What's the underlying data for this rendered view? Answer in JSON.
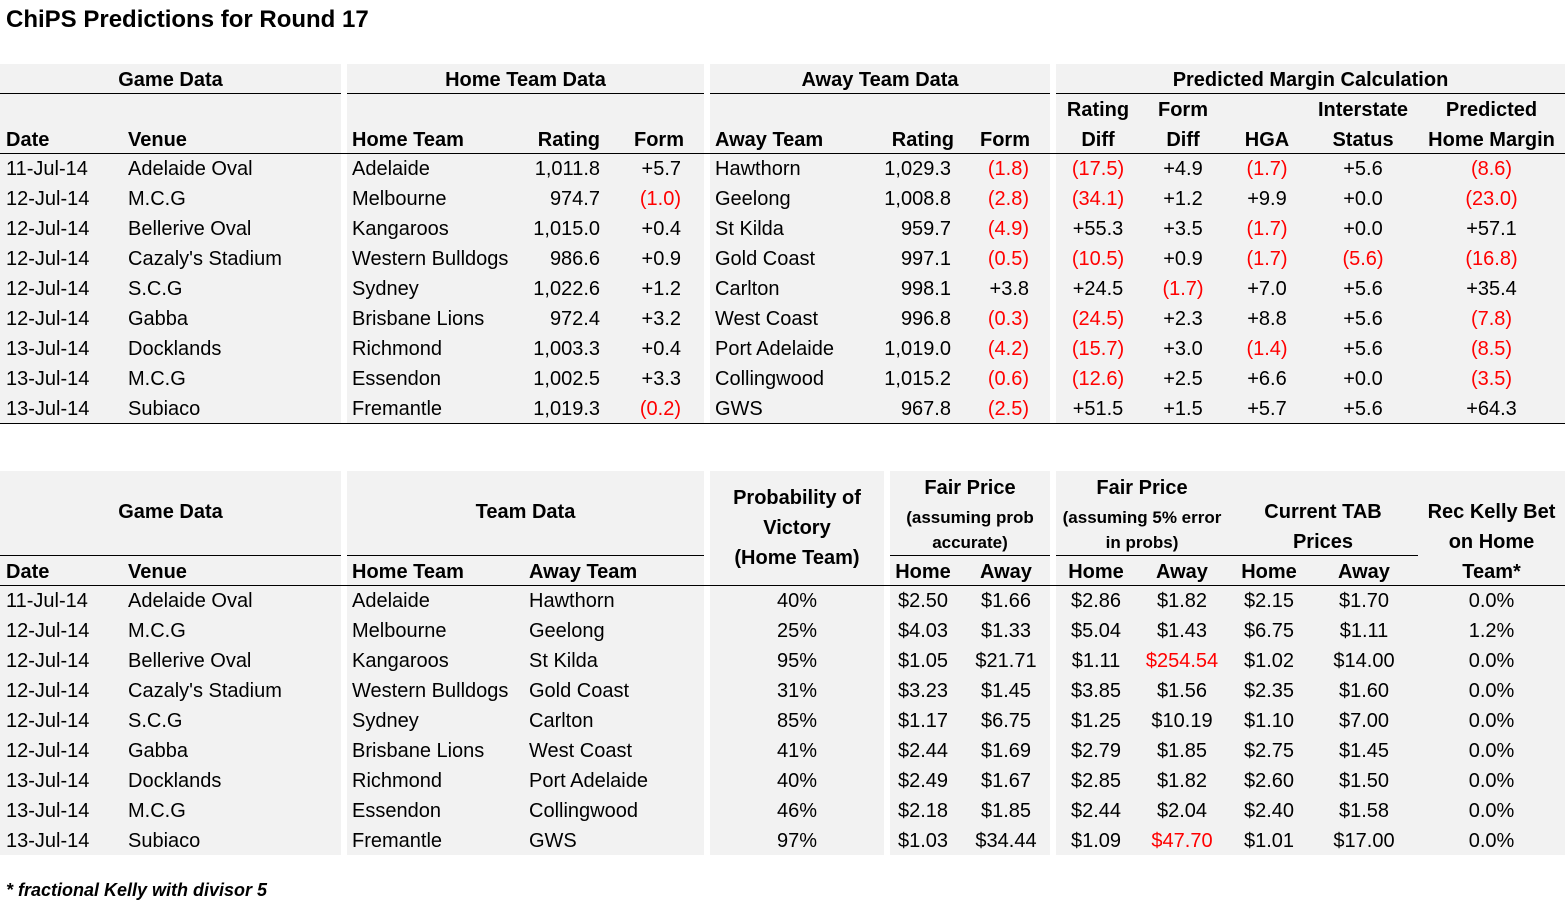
{
  "title": "ChiPS Predictions for Round 17",
  "table1": {
    "sections": [
      "Game Data",
      "Home Team Data",
      "Away Team Data",
      "Predicted Margin Calculation"
    ],
    "headers": {
      "date": "Date",
      "venue": "Venue",
      "home_team": "Home Team",
      "home_rating": "Rating",
      "home_form": "Form",
      "away_team": "Away Team",
      "away_rating": "Rating",
      "away_form": "Form",
      "rating_diff_1": "Rating",
      "rating_diff_2": "Diff",
      "form_diff_1": "Form",
      "form_diff_2": "Diff",
      "hga": "HGA",
      "interstate_1": "Interstate",
      "interstate_2": "Status",
      "pred_1": "Predicted",
      "pred_2": "Home Margin"
    },
    "rows": [
      {
        "date": "11-Jul-14",
        "venue": "Adelaide Oval",
        "home": "Adelaide",
        "hrating": "1,011.8",
        "hform": "+5.7",
        "away": "Hawthorn",
        "arating": "1,029.3",
        "aform": "(1.8)",
        "rdiff": "(17.5)",
        "fdiff": "+4.9",
        "hga": "(1.7)",
        "inter": "+5.6",
        "pred": "(8.6)"
      },
      {
        "date": "12-Jul-14",
        "venue": "M.C.G",
        "home": "Melbourne",
        "hrating": "974.7",
        "hform": "(1.0)",
        "away": "Geelong",
        "arating": "1,008.8",
        "aform": "(2.8)",
        "rdiff": "(34.1)",
        "fdiff": "+1.2",
        "hga": "+9.9",
        "inter": "+0.0",
        "pred": "(23.0)"
      },
      {
        "date": "12-Jul-14",
        "venue": "Bellerive Oval",
        "home": "Kangaroos",
        "hrating": "1,015.0",
        "hform": "+0.4",
        "away": "St Kilda",
        "arating": "959.7",
        "aform": "(4.9)",
        "rdiff": "+55.3",
        "fdiff": "+3.5",
        "hga": "(1.7)",
        "inter": "+0.0",
        "pred": "+57.1"
      },
      {
        "date": "12-Jul-14",
        "venue": "Cazaly's Stadium",
        "home": "Western Bulldogs",
        "hrating": "986.6",
        "hform": "+0.9",
        "away": "Gold Coast",
        "arating": "997.1",
        "aform": "(0.5)",
        "rdiff": "(10.5)",
        "fdiff": "+0.9",
        "hga": "(1.7)",
        "inter": "(5.6)",
        "pred": "(16.8)"
      },
      {
        "date": "12-Jul-14",
        "venue": "S.C.G",
        "home": "Sydney",
        "hrating": "1,022.6",
        "hform": "+1.2",
        "away": "Carlton",
        "arating": "998.1",
        "aform": "+3.8",
        "rdiff": "+24.5",
        "fdiff": "(1.7)",
        "hga": "+7.0",
        "inter": "+5.6",
        "pred": "+35.4"
      },
      {
        "date": "12-Jul-14",
        "venue": "Gabba",
        "home": "Brisbane Lions",
        "hrating": "972.4",
        "hform": "+3.2",
        "away": "West Coast",
        "arating": "996.8",
        "aform": "(0.3)",
        "rdiff": "(24.5)",
        "fdiff": "+2.3",
        "hga": "+8.8",
        "inter": "+5.6",
        "pred": "(7.8)"
      },
      {
        "date": "13-Jul-14",
        "venue": "Docklands",
        "home": "Richmond",
        "hrating": "1,003.3",
        "hform": "+0.4",
        "away": "Port Adelaide",
        "arating": "1,019.0",
        "aform": "(4.2)",
        "rdiff": "(15.7)",
        "fdiff": "+3.0",
        "hga": "(1.4)",
        "inter": "+5.6",
        "pred": "(8.5)"
      },
      {
        "date": "13-Jul-14",
        "venue": "M.C.G",
        "home": "Essendon",
        "hrating": "1,002.5",
        "hform": "+3.3",
        "away": "Collingwood",
        "arating": "1,015.2",
        "aform": "(0.6)",
        "rdiff": "(12.6)",
        "fdiff": "+2.5",
        "hga": "+6.6",
        "inter": "+0.0",
        "pred": "(3.5)"
      },
      {
        "date": "13-Jul-14",
        "venue": "Subiaco",
        "home": "Fremantle",
        "hrating": "1,019.3",
        "hform": "(0.2)",
        "away": "GWS",
        "arating": "967.8",
        "aform": "(2.5)",
        "rdiff": "+51.5",
        "fdiff": "+1.5",
        "hga": "+5.7",
        "inter": "+5.6",
        "pred": "+64.3"
      }
    ]
  },
  "table2": {
    "sections": {
      "game": "Game Data",
      "team": "Team Data",
      "prob_1": "Probability of",
      "prob_2": "Victory",
      "prob_3": "(Home Team)",
      "fair1_1": "Fair Price",
      "fair1_2": "(assuming prob",
      "fair1_3": "accurate)",
      "fair2_1": "Fair Price",
      "fair2_2": "(assuming 5% error",
      "fair2_3": "in probs)",
      "tab_1": "Current TAB",
      "tab_2": "Prices",
      "kelly_1": "Rec Kelly Bet",
      "kelly_2": "on Home",
      "kelly_3": "Team*"
    },
    "headers": {
      "date": "Date",
      "venue": "Venue",
      "home_team": "Home Team",
      "away_team": "Away Team",
      "home": "Home",
      "away": "Away"
    },
    "rows": [
      {
        "date": "11-Jul-14",
        "venue": "Adelaide Oval",
        "home": "Adelaide",
        "away": "Hawthorn",
        "prob": "40%",
        "f1h": "$2.50",
        "f1a": "$1.66",
        "f2h": "$2.86",
        "f2a": "$1.82",
        "tabh": "$2.15",
        "taba": "$1.70",
        "kelly": "0.0%"
      },
      {
        "date": "12-Jul-14",
        "venue": "M.C.G",
        "home": "Melbourne",
        "away": "Geelong",
        "prob": "25%",
        "f1h": "$4.03",
        "f1a": "$1.33",
        "f2h": "$5.04",
        "f2a": "$1.43",
        "tabh": "$6.75",
        "taba": "$1.11",
        "kelly": "1.2%"
      },
      {
        "date": "12-Jul-14",
        "venue": "Bellerive Oval",
        "home": "Kangaroos",
        "away": "St Kilda",
        "prob": "95%",
        "f1h": "$1.05",
        "f1a": "$21.71",
        "f2h": "$1.11",
        "f2a": "$254.54",
        "tabh": "$1.02",
        "taba": "$14.00",
        "kelly": "0.0%"
      },
      {
        "date": "12-Jul-14",
        "venue": "Cazaly's Stadium",
        "home": "Western Bulldogs",
        "away": "Gold Coast",
        "prob": "31%",
        "f1h": "$3.23",
        "f1a": "$1.45",
        "f2h": "$3.85",
        "f2a": "$1.56",
        "tabh": "$2.35",
        "taba": "$1.60",
        "kelly": "0.0%"
      },
      {
        "date": "12-Jul-14",
        "venue": "S.C.G",
        "home": "Sydney",
        "away": "Carlton",
        "prob": "85%",
        "f1h": "$1.17",
        "f1a": "$6.75",
        "f2h": "$1.25",
        "f2a": "$10.19",
        "tabh": "$1.10",
        "taba": "$7.00",
        "kelly": "0.0%"
      },
      {
        "date": "12-Jul-14",
        "venue": "Gabba",
        "home": "Brisbane Lions",
        "away": "West Coast",
        "prob": "41%",
        "f1h": "$2.44",
        "f1a": "$1.69",
        "f2h": "$2.79",
        "f2a": "$1.85",
        "tabh": "$2.75",
        "taba": "$1.45",
        "kelly": "0.0%"
      },
      {
        "date": "13-Jul-14",
        "venue": "Docklands",
        "home": "Richmond",
        "away": "Port Adelaide",
        "prob": "40%",
        "f1h": "$2.49",
        "f1a": "$1.67",
        "f2h": "$2.85",
        "f2a": "$1.82",
        "tabh": "$2.60",
        "taba": "$1.50",
        "kelly": "0.0%"
      },
      {
        "date": "13-Jul-14",
        "venue": "M.C.G",
        "home": "Essendon",
        "away": "Collingwood",
        "prob": "46%",
        "f1h": "$2.18",
        "f1a": "$1.85",
        "f2h": "$2.44",
        "f2a": "$2.04",
        "tabh": "$2.40",
        "taba": "$1.58",
        "kelly": "0.0%"
      },
      {
        "date": "13-Jul-14",
        "venue": "Subiaco",
        "home": "Fremantle",
        "away": "GWS",
        "prob": "97%",
        "f1h": "$1.03",
        "f1a": "$34.44",
        "f2h": "$1.09",
        "f2a": "$47.70",
        "tabh": "$1.01",
        "taba": "$17.00",
        "kelly": "0.0%"
      }
    ]
  },
  "footnote": "* fractional Kelly with divisor 5",
  "colors": {
    "negative": "#ff0000",
    "table_bg": "#f2f2f2"
  }
}
